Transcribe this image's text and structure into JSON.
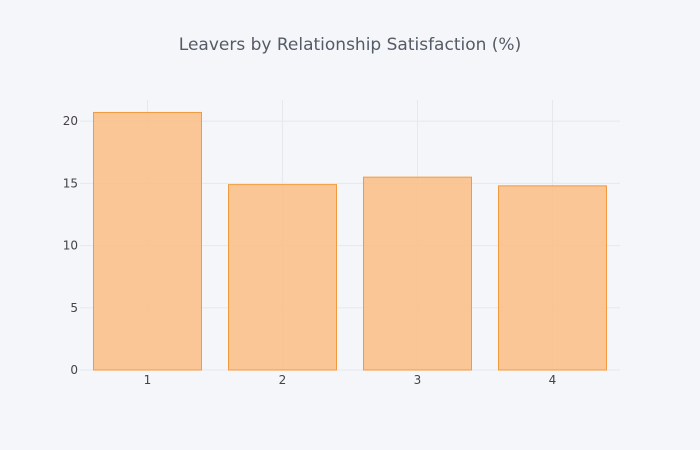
{
  "chart_data": {
    "type": "bar",
    "title": "Leavers by Relationship Satisfaction (%)",
    "categories": [
      "1",
      "2",
      "3",
      "4"
    ],
    "values": [
      20.7,
      14.9,
      15.5,
      14.8
    ],
    "xlabel": "",
    "ylabel": "",
    "ylim": [
      0,
      21.7
    ],
    "yticks": [
      0,
      5,
      10,
      15,
      20
    ],
    "grid": true,
    "legend": "none",
    "colors": {
      "background": "#f5f6f9",
      "bar_fill": "#fbbd84",
      "bar_stroke": "#f29a3d",
      "grid": "#e6e8ee",
      "title": "#555b66",
      "tick": "#444444"
    }
  }
}
